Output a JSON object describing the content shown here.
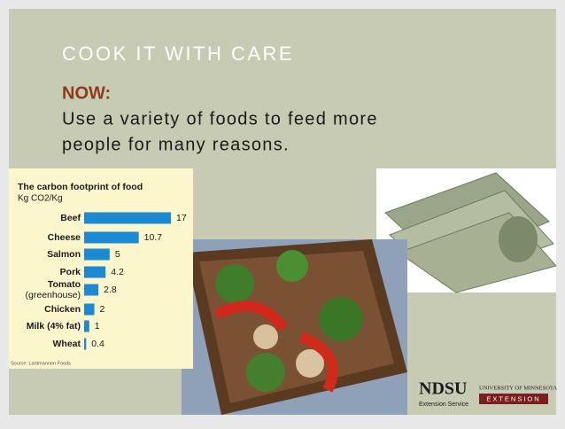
{
  "slide": {
    "title": "COOK IT WITH CARE",
    "heading": "NOW:",
    "body_lines": [
      "Use a variety of foods to feed more",
      "people for many reasons."
    ],
    "logos": {
      "ndsu": "NDSU",
      "ndsu_sub": "Extension Service",
      "umn": "University of Minnesota",
      "umn_sub": "EXTENSION"
    }
  },
  "chart_data": {
    "type": "bar",
    "orientation": "horizontal",
    "title": "The carbon footprint of food",
    "subtitle": "Kg CO2/Kg",
    "source": "Source: Lantmannen Foods",
    "categories": [
      "Beef",
      "Cheese",
      "Salmon",
      "Pork",
      "Tomato (greenhouse)",
      "Chicken",
      "Milk (4% fat)",
      "Wheat"
    ],
    "values": [
      17,
      10.7,
      5,
      4.2,
      2.8,
      2,
      1,
      0.4
    ],
    "color": "#1b8ad3"
  }
}
